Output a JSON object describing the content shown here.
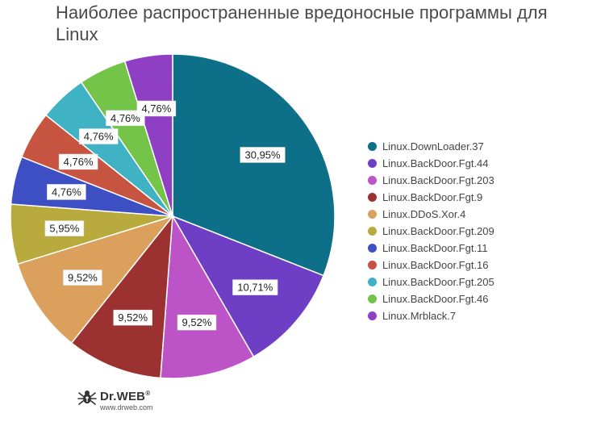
{
  "chart_data": {
    "type": "pie",
    "title": "Наиболее распространенные вредоносные программы для Linux",
    "slices": [
      {
        "name": "Linux.DownLoader.37",
        "value": 30.95,
        "label": "30,95%",
        "color": "#0e6f89"
      },
      {
        "name": "Linux.BackDoor.Fgt.44",
        "value": 10.71,
        "label": "10,71%",
        "color": "#6e3fc4"
      },
      {
        "name": "Linux.BackDoor.Fgt.203",
        "value": 9.52,
        "label": "9,52%",
        "color": "#bc53c6"
      },
      {
        "name": "Linux.BackDoor.Fgt.9",
        "value": 9.52,
        "label": "9,52%",
        "color": "#9c3131"
      },
      {
        "name": "Linux.DDoS.Xor.4",
        "value": 9.52,
        "label": "9,52%",
        "color": "#dca05d"
      },
      {
        "name": "Linux.BackDoor.Fgt.209",
        "value": 5.95,
        "label": "5,95%",
        "color": "#b8aa3c"
      },
      {
        "name": "Linux.BackDoor.Fgt.11",
        "value": 4.76,
        "label": "4,76%",
        "color": "#3e4fc4"
      },
      {
        "name": "Linux.BackDoor.Fgt.16",
        "value": 4.76,
        "label": "4,76%",
        "color": "#c75341"
      },
      {
        "name": "Linux.BackDoor.Fgt.205",
        "value": 4.76,
        "label": "4,76%",
        "color": "#3fb2c4"
      },
      {
        "name": "Linux.BackDoor.Fgt.46",
        "value": 4.76,
        "label": "4,76%",
        "color": "#74c44a"
      },
      {
        "name": "Linux.Mrblack.7",
        "value": 4.76,
        "label": "4,76%",
        "color": "#8e3fc4"
      }
    ],
    "legend_position": "right"
  },
  "branding": {
    "logo_text": "Dr.WEB",
    "logo_mark": "®",
    "url": "www.drweb.com"
  }
}
